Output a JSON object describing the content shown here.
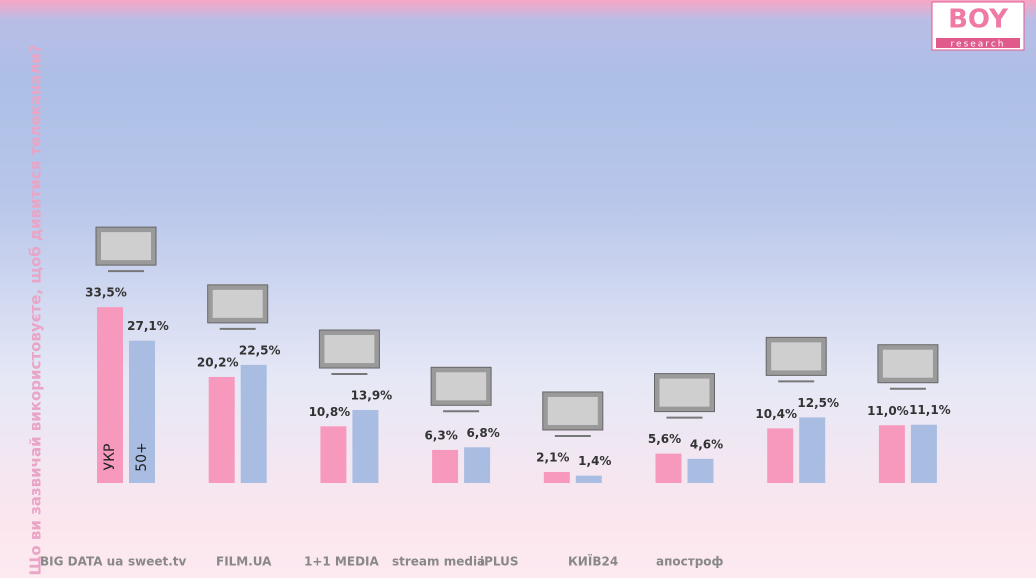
{
  "brand": {
    "name": "BOY",
    "tagline": "research"
  },
  "partners": [
    "BIG DATA ua",
    "sweet.tv",
    "FILM.UA",
    "1+1 MEDIA",
    "stream media",
    "iPLUS",
    "КИЇВ24",
    "апостроф"
  ],
  "chart_data": {
    "type": "bar",
    "title": "Що ви зазвичай використовуєте, щоб дивитися телеканали?",
    "categories": [
      null,
      null,
      null,
      null,
      null,
      null,
      null,
      null
    ],
    "series": [
      {
        "name": "УКР",
        "color": "#f799bd",
        "values": [
          33.5,
          20.2,
          10.8,
          6.3,
          2.1,
          5.6,
          10.4,
          11.0
        ],
        "value_labels": [
          "33,5%",
          "20,2%",
          "10,8%",
          "6,3%",
          "2,1%",
          "5,6%",
          "10,4%",
          "11,0%"
        ]
      },
      {
        "name": "50+",
        "color": "#a9bde3",
        "values": [
          27.1,
          22.5,
          13.9,
          6.8,
          1.4,
          4.6,
          12.5,
          11.1
        ],
        "value_labels": [
          "27,1%",
          "22,5%",
          "13,9%",
          "6,8%",
          "1,4%",
          "4,6%",
          "12,5%",
          "11,1%"
        ]
      }
    ]
  }
}
